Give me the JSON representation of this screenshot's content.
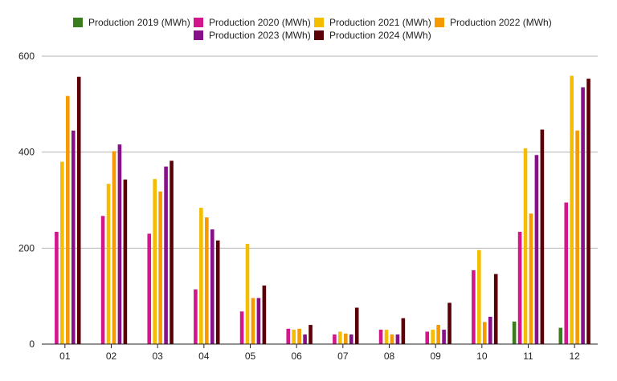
{
  "chart_data": {
    "type": "bar",
    "categories": [
      "01",
      "02",
      "03",
      "04",
      "05",
      "06",
      "07",
      "08",
      "09",
      "10",
      "11",
      "12"
    ],
    "series": [
      {
        "name": "Production 2019 (MWh)",
        "color": "#3a7d1e",
        "values": [
          null,
          null,
          null,
          null,
          null,
          null,
          null,
          null,
          null,
          null,
          47,
          34
        ]
      },
      {
        "name": "Production 2020 (MWh)",
        "color": "#d4168c",
        "values": [
          234,
          267,
          230,
          114,
          68,
          32,
          20,
          30,
          26,
          154,
          234,
          295
        ]
      },
      {
        "name": "Production 2021 (MWh)",
        "color": "#f5bd00",
        "values": [
          380,
          334,
          344,
          284,
          209,
          30,
          26,
          30,
          30,
          196,
          408,
          559
        ]
      },
      {
        "name": "Production 2022 (MWh)",
        "color": "#f59a00",
        "values": [
          517,
          402,
          318,
          264,
          96,
          32,
          22,
          20,
          40,
          46,
          272,
          445
        ]
      },
      {
        "name": "Production 2023 (MWh)",
        "color": "#870f87",
        "values": [
          445,
          416,
          370,
          239,
          96,
          20,
          20,
          20,
          30,
          57,
          394,
          535
        ]
      },
      {
        "name": "Production 2024 (MWh)",
        "color": "#5c0008",
        "values": [
          557,
          343,
          382,
          216,
          122,
          40,
          76,
          54,
          86,
          146,
          447,
          553
        ]
      }
    ],
    "ylim": [
      0,
      600
    ],
    "yticks": [
      0,
      200,
      400,
      600
    ],
    "grid": true,
    "legend_position": "top"
  }
}
